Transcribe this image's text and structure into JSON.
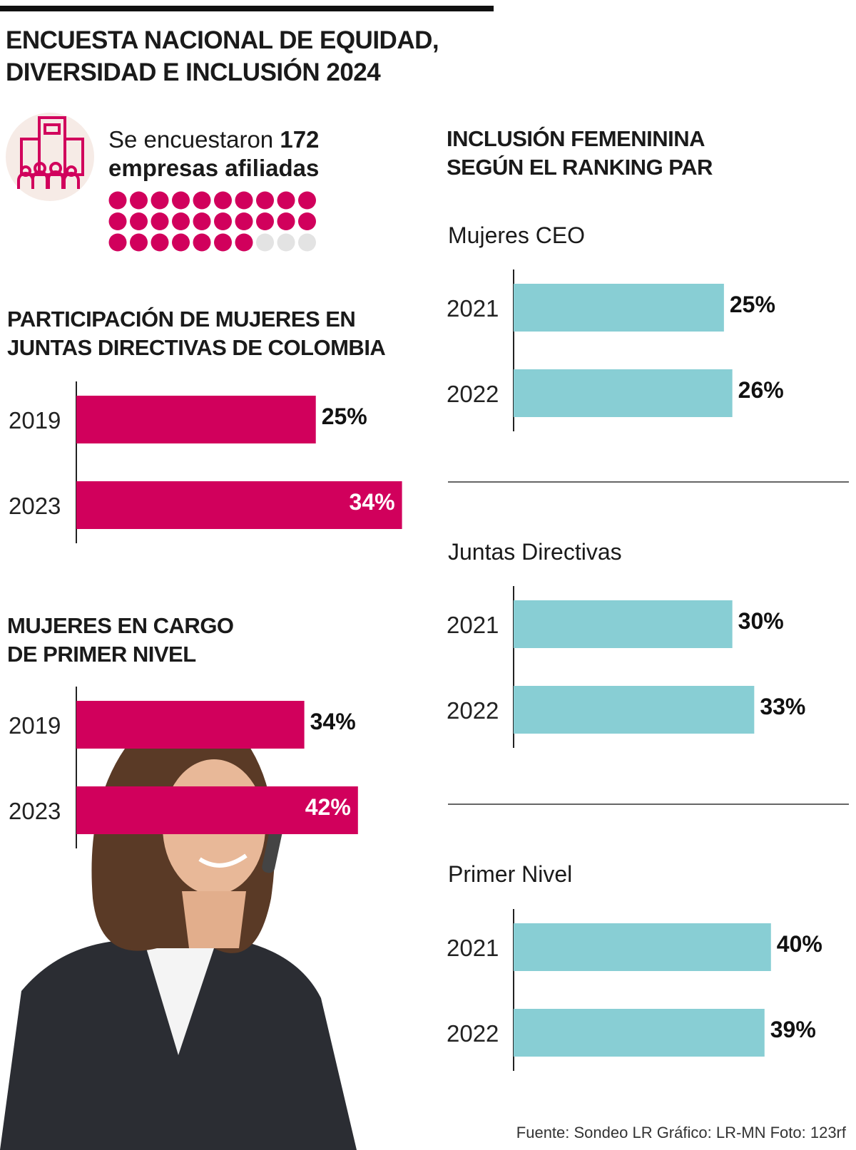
{
  "title": "ENCUESTA NACIONAL DE EQUIDAD,\nDIVERSIDAD E INCLUSIÓN 2024",
  "survey": {
    "intro": "Se encuestaron",
    "companies": 172,
    "label": "empresas afiliadas"
  },
  "ranking_title": "INCLUSIÓN FEMENININA\nSEGÚN EL RANKING PAR",
  "source": "Fuente: Sondeo LR   Gráfico: LR-MN   Foto: 123rf",
  "chart_data": [
    {
      "type": "bar",
      "orientation": "horizontal",
      "title": "PARTICIPACIÓN DE MUJERES EN\nJUNTAS DIRECTIVAS DE COLOMBIA",
      "categories": [
        "2019",
        "2023"
      ],
      "values": [
        25,
        34
      ],
      "value_labels": [
        "25%",
        "34%"
      ],
      "color": "#d1005c",
      "xlim": [
        0,
        35
      ]
    },
    {
      "type": "bar",
      "orientation": "horizontal",
      "title": "MUJERES EN CARGO\nDE PRIMER NIVEL",
      "categories": [
        "2019",
        "2023"
      ],
      "values": [
        34,
        42
      ],
      "value_labels": [
        "34%",
        "42%"
      ],
      "color": "#d1005c",
      "xlim": [
        0,
        50
      ]
    },
    {
      "type": "bar",
      "orientation": "horizontal",
      "title": "Mujeres CEO",
      "categories": [
        "2021",
        "2022"
      ],
      "values": [
        25,
        26
      ],
      "value_labels": [
        "25%",
        "26%"
      ],
      "color": "#88ced4",
      "xlim": [
        0,
        39
      ]
    },
    {
      "type": "bar",
      "orientation": "horizontal",
      "title": "Juntas Directivas",
      "categories": [
        "2021",
        "2022"
      ],
      "values": [
        30,
        33
      ],
      "value_labels": [
        "30%",
        "33%"
      ],
      "color": "#88ced4",
      "xlim": [
        0,
        45
      ]
    },
    {
      "type": "bar",
      "orientation": "horizontal",
      "title": "Primer Nivel",
      "categories": [
        "2021",
        "2022"
      ],
      "values": [
        40,
        39
      ],
      "value_labels": [
        "40%",
        "39%"
      ],
      "color": "#88ced4",
      "xlim": [
        0,
        51
      ]
    }
  ]
}
